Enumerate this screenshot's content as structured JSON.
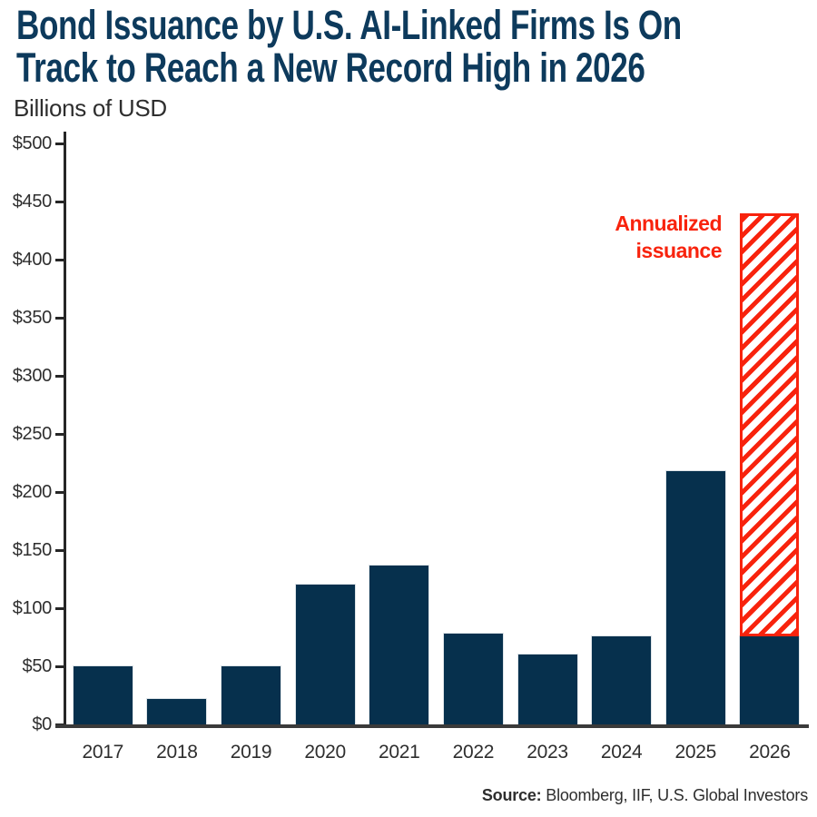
{
  "title": {
    "line1": "Bond Issuance by U.S. AI-Linked Firms Is On",
    "line2": "Track to Reach a New Record High in 2026"
  },
  "subtitle": "Billions of USD",
  "annotation": {
    "line1": "Annualized",
    "line2": "issuance"
  },
  "source": {
    "label": "Source:",
    "text": " Bloomberg, IIF, U.S. Global Investors"
  },
  "colors": {
    "navy": "#06304d",
    "title_navy": "#0d3a5c",
    "red": "#f8230d",
    "ink": "#2e2e2e",
    "axis": "#3a3a3a"
  },
  "chart_data": {
    "type": "bar",
    "title": "Bond Issuance by U.S. AI-Linked Firms Is On Track to Reach a New Record High in 2026",
    "ylabel": "Billions of USD",
    "xlabel": "",
    "categories": [
      "2017",
      "2018",
      "2019",
      "2020",
      "2021",
      "2022",
      "2023",
      "2024",
      "2025",
      "2026"
    ],
    "values": [
      50,
      22,
      50,
      120,
      137,
      78,
      60,
      76,
      218,
      76
    ],
    "annualized_2026": {
      "label": "Annualized issuance",
      "category": "2026",
      "from": 76,
      "to": 440
    },
    "ylim": [
      0,
      500
    ],
    "ytick_step": 50,
    "ytick_labels": [
      "$0",
      "$50",
      "$100",
      "$150",
      "$200",
      "$250",
      "$300",
      "$350",
      "$400",
      "$450",
      "$500"
    ],
    "grid": false,
    "legend": "none",
    "bar_color": "#06304d",
    "annualized_style": "red diagonal hatch with red outline"
  }
}
